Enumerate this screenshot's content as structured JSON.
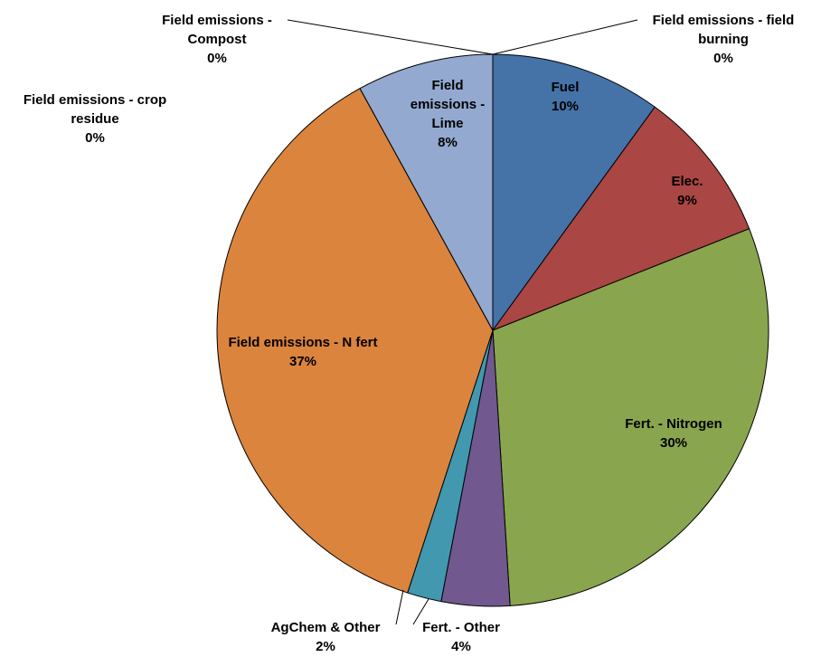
{
  "chart_data": {
    "type": "pie",
    "categories": [
      "Field emissions - field burning",
      "Fuel",
      "Elec.",
      "Fert. - Nitrogen",
      "Fert. - Other",
      "AgChem & Other",
      "Field emissions - N fert",
      "Field emissions - crop residue",
      "Field emissions - Lime",
      "Field emissions - Compost"
    ],
    "values": [
      0,
      10,
      9,
      30,
      4,
      2,
      37,
      0,
      8,
      0
    ],
    "value_labels": [
      "0%",
      "10%",
      "9%",
      "30%",
      "4%",
      "2%",
      "37%",
      "0%",
      "8%",
      "0%"
    ],
    "colors": [
      "#4572a7",
      "#4572a7",
      "#aa4643",
      "#89a54e",
      "#71588f",
      "#4198af",
      "#db843d",
      "#93a9cf",
      "#93a9cf",
      "#aa4643"
    ]
  }
}
